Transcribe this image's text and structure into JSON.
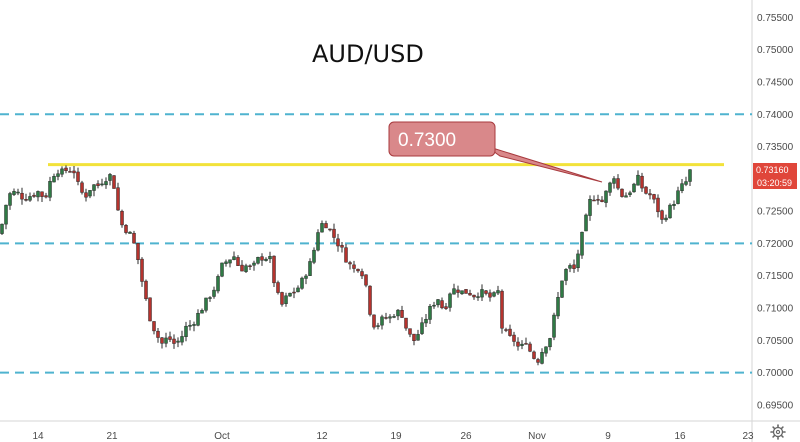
{
  "chart_data": {
    "type": "candlestick",
    "title": "AUD/USD",
    "x_tick_labels": [
      "14",
      "21",
      "Oct",
      "12",
      "19",
      "26",
      "Nov",
      "9",
      "16",
      "23"
    ],
    "y_tick_labels": [
      "0.75500",
      "0.75000",
      "0.74500",
      "0.74000",
      "0.73500",
      "0.73000",
      "0.72500",
      "0.72000",
      "0.71500",
      "0.71000",
      "0.70500",
      "0.70000",
      "0.69500"
    ],
    "y_ticks": [
      0.755,
      0.75,
      0.745,
      0.74,
      0.735,
      0.73,
      0.725,
      0.72,
      0.715,
      0.71,
      0.705,
      0.7,
      0.695
    ],
    "ylim": [
      0.6925,
      0.7577
    ],
    "grid": false,
    "horizontal_levels": [
      {
        "value": 0.74,
        "style": "dashed",
        "color": "#4fb3cf"
      },
      {
        "value": 0.72,
        "style": "dashed",
        "color": "#4fb3cf"
      },
      {
        "value": 0.7,
        "style": "dashed",
        "color": "#4fb3cf"
      },
      {
        "value": 0.7322,
        "style": "solid",
        "color": "#f2e23a"
      }
    ],
    "callout": {
      "text": "0.7300",
      "color": "#d9888a"
    },
    "price_tag": {
      "text": "0.73160",
      "value": 0.7316,
      "color": "#e0463a"
    },
    "countdown_tag": {
      "text": "03:20:59",
      "color": "#e0463a"
    },
    "close_path": [
      {
        "x": 0,
        "y": 0.7215
      },
      {
        "x": 8,
        "y": 0.7275
      },
      {
        "x": 16,
        "y": 0.728
      },
      {
        "x": 24,
        "y": 0.727
      },
      {
        "x": 32,
        "y": 0.7275
      },
      {
        "x": 38,
        "y": 0.728
      },
      {
        "x": 45,
        "y": 0.727
      },
      {
        "x": 50,
        "y": 0.7295
      },
      {
        "x": 56,
        "y": 0.7315
      },
      {
        "x": 62,
        "y": 0.731
      },
      {
        "x": 68,
        "y": 0.7315
      },
      {
        "x": 74,
        "y": 0.7312
      },
      {
        "x": 80,
        "y": 0.728
      },
      {
        "x": 86,
        "y": 0.7275
      },
      {
        "x": 92,
        "y": 0.729
      },
      {
        "x": 98,
        "y": 0.729
      },
      {
        "x": 104,
        "y": 0.73
      },
      {
        "x": 110,
        "y": 0.7305
      },
      {
        "x": 115,
        "y": 0.7285
      },
      {
        "x": 119,
        "y": 0.724
      },
      {
        "x": 123,
        "y": 0.7225
      },
      {
        "x": 128,
        "y": 0.722
      },
      {
        "x": 133,
        "y": 0.7205
      },
      {
        "x": 138,
        "y": 0.7175
      },
      {
        "x": 144,
        "y": 0.7125
      },
      {
        "x": 150,
        "y": 0.7085
      },
      {
        "x": 156,
        "y": 0.706
      },
      {
        "x": 162,
        "y": 0.7045
      },
      {
        "x": 168,
        "y": 0.7055
      },
      {
        "x": 174,
        "y": 0.7045
      },
      {
        "x": 180,
        "y": 0.705
      },
      {
        "x": 186,
        "y": 0.707
      },
      {
        "x": 192,
        "y": 0.7075
      },
      {
        "x": 198,
        "y": 0.709
      },
      {
        "x": 204,
        "y": 0.7105
      },
      {
        "x": 210,
        "y": 0.712
      },
      {
        "x": 216,
        "y": 0.7135
      },
      {
        "x": 222,
        "y": 0.7165
      },
      {
        "x": 228,
        "y": 0.7175
      },
      {
        "x": 234,
        "y": 0.718
      },
      {
        "x": 240,
        "y": 0.716
      },
      {
        "x": 246,
        "y": 0.7165
      },
      {
        "x": 252,
        "y": 0.716
      },
      {
        "x": 258,
        "y": 0.7175
      },
      {
        "x": 264,
        "y": 0.718
      },
      {
        "x": 270,
        "y": 0.7175
      },
      {
        "x": 276,
        "y": 0.7125
      },
      {
        "x": 282,
        "y": 0.7105
      },
      {
        "x": 288,
        "y": 0.712
      },
      {
        "x": 294,
        "y": 0.7125
      },
      {
        "x": 300,
        "y": 0.7135
      },
      {
        "x": 306,
        "y": 0.7155
      },
      {
        "x": 312,
        "y": 0.7175
      },
      {
        "x": 318,
        "y": 0.722
      },
      {
        "x": 324,
        "y": 0.7235
      },
      {
        "x": 330,
        "y": 0.722
      },
      {
        "x": 336,
        "y": 0.7205
      },
      {
        "x": 342,
        "y": 0.719
      },
      {
        "x": 348,
        "y": 0.717
      },
      {
        "x": 354,
        "y": 0.716
      },
      {
        "x": 360,
        "y": 0.7165
      },
      {
        "x": 366,
        "y": 0.7135
      },
      {
        "x": 372,
        "y": 0.7075
      },
      {
        "x": 378,
        "y": 0.7075
      },
      {
        "x": 384,
        "y": 0.7085
      },
      {
        "x": 390,
        "y": 0.7085
      },
      {
        "x": 396,
        "y": 0.7095
      },
      {
        "x": 402,
        "y": 0.709
      },
      {
        "x": 408,
        "y": 0.706
      },
      {
        "x": 414,
        "y": 0.705
      },
      {
        "x": 420,
        "y": 0.7065
      },
      {
        "x": 426,
        "y": 0.7085
      },
      {
        "x": 432,
        "y": 0.7105
      },
      {
        "x": 438,
        "y": 0.7115
      },
      {
        "x": 444,
        "y": 0.7095
      },
      {
        "x": 450,
        "y": 0.7125
      },
      {
        "x": 456,
        "y": 0.713
      },
      {
        "x": 462,
        "y": 0.7125
      },
      {
        "x": 468,
        "y": 0.7125
      },
      {
        "x": 474,
        "y": 0.712
      },
      {
        "x": 480,
        "y": 0.7125
      },
      {
        "x": 486,
        "y": 0.712
      },
      {
        "x": 492,
        "y": 0.7115
      },
      {
        "x": 498,
        "y": 0.7125
      },
      {
        "x": 502,
        "y": 0.707
      },
      {
        "x": 508,
        "y": 0.7055
      },
      {
        "x": 514,
        "y": 0.705
      },
      {
        "x": 520,
        "y": 0.7035
      },
      {
        "x": 526,
        "y": 0.705
      },
      {
        "x": 532,
        "y": 0.7025
      },
      {
        "x": 538,
        "y": 0.702
      },
      {
        "x": 544,
        "y": 0.704
      },
      {
        "x": 550,
        "y": 0.7055
      },
      {
        "x": 556,
        "y": 0.71
      },
      {
        "x": 562,
        "y": 0.7145
      },
      {
        "x": 568,
        "y": 0.7165
      },
      {
        "x": 574,
        "y": 0.716
      },
      {
        "x": 578,
        "y": 0.7185
      },
      {
        "x": 584,
        "y": 0.7225
      },
      {
        "x": 590,
        "y": 0.7265
      },
      {
        "x": 596,
        "y": 0.7275
      },
      {
        "x": 602,
        "y": 0.7265
      },
      {
        "x": 608,
        "y": 0.7285
      },
      {
        "x": 614,
        "y": 0.7305
      },
      {
        "x": 620,
        "y": 0.7275
      },
      {
        "x": 626,
        "y": 0.7275
      },
      {
        "x": 632,
        "y": 0.7285
      },
      {
        "x": 638,
        "y": 0.73
      },
      {
        "x": 644,
        "y": 0.728
      },
      {
        "x": 650,
        "y": 0.7275
      },
      {
        "x": 656,
        "y": 0.726
      },
      {
        "x": 662,
        "y": 0.7235
      },
      {
        "x": 668,
        "y": 0.725
      },
      {
        "x": 674,
        "y": 0.7265
      },
      {
        "x": 680,
        "y": 0.7285
      },
      {
        "x": 686,
        "y": 0.7295
      },
      {
        "x": 691,
        "y": 0.7316
      }
    ]
  }
}
